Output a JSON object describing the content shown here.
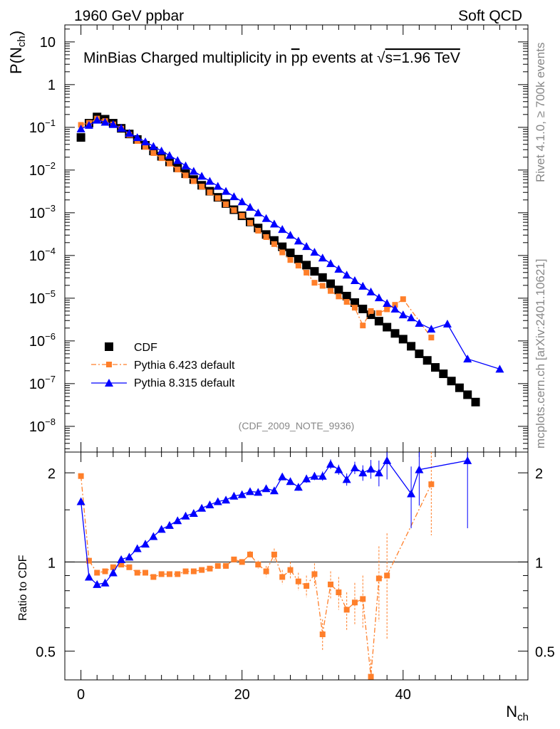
{
  "header": {
    "left": "1960 GeV ppbar",
    "right": "Soft QCD"
  },
  "side_labels": {
    "rivet": "Rivet 4.1.0, ≥ 700k events",
    "mcplots": "mcplots.cern.ch [arXiv:2401.10621]"
  },
  "chart_data": [
    {
      "type": "scatter",
      "title": "MinBias Charged multiplicity in p̅p events at √s=1.96 TeV",
      "title_parts": {
        "pre": "MinBias Charged multiplicity in ",
        "pbar": "p",
        "p": "p",
        "mid": " events at ",
        "sqrt": "√",
        "s_rest": "s=1.96 TeV"
      },
      "analysis_tag": "(CDF_2009_NOTE_9936)",
      "ylabel": {
        "main": "P(N",
        "sub": "ch",
        "close": ")"
      },
      "yscale": "log",
      "ylim": [
        2.5e-09,
        25
      ],
      "xlim": [
        -2,
        55.5
      ],
      "y_ticks": [
        {
          "v": 10,
          "b": "10",
          "e": ""
        },
        {
          "v": 1,
          "b": "1",
          "e": ""
        },
        {
          "v": 0.1,
          "b": "10",
          "e": "−1"
        },
        {
          "v": 0.01,
          "b": "10",
          "e": "−2"
        },
        {
          "v": 0.001,
          "b": "10",
          "e": "−3"
        },
        {
          "v": 0.0001,
          "b": "10",
          "e": "−4"
        },
        {
          "v": 1e-05,
          "b": "10",
          "e": "−5"
        },
        {
          "v": 1e-06,
          "b": "10",
          "e": "−6"
        },
        {
          "v": 1e-07,
          "b": "10",
          "e": "−7"
        },
        {
          "v": 1e-08,
          "b": "10",
          "e": "−8"
        }
      ],
      "legend": [
        {
          "name": "CDF"
        },
        {
          "name": "Pythia 6.423 default"
        },
        {
          "name": "Pythia 8.315 default"
        }
      ],
      "series": [
        {
          "name": "CDF",
          "color": "#000000",
          "marker": "square",
          "points": [
            [
              0,
              0.058
            ],
            [
              1,
              0.125
            ],
            [
              2,
              0.175
            ],
            [
              3,
              0.155
            ],
            [
              4,
              0.125
            ],
            [
              5,
              0.095
            ],
            [
              6,
              0.07
            ],
            [
              7,
              0.052
            ],
            [
              8,
              0.038
            ],
            [
              9,
              0.028
            ],
            [
              10,
              0.021
            ],
            [
              11,
              0.0155
            ],
            [
              12,
              0.0113
            ],
            [
              13,
              0.0082
            ],
            [
              14,
              0.006
            ],
            [
              15,
              0.0044
            ],
            [
              16,
              0.0032
            ],
            [
              17,
              0.0023
            ],
            [
              18,
              0.00165
            ],
            [
              19,
              0.00118
            ],
            [
              20,
              0.00085
            ],
            [
              21,
              0.00061
            ],
            [
              22,
              0.00044
            ],
            [
              23,
              0.00031
            ],
            [
              24,
              0.000225
            ],
            [
              25,
              0.00016
            ],
            [
              26,
              0.000115
            ],
            [
              27,
              8.2e-05
            ],
            [
              28,
              5.95e-05
            ],
            [
              29,
              4.25e-05
            ],
            [
              30,
              3.05e-05
            ],
            [
              31,
              2.18e-05
            ],
            [
              32,
              1.56e-05
            ],
            [
              33,
              1.12e-05
            ],
            [
              34,
              7.9e-06
            ],
            [
              35,
              5.6e-06
            ],
            [
              36,
              4.1e-06
            ],
            [
              37,
              2.9e-06
            ],
            [
              38,
              2.1e-06
            ],
            [
              39,
              1.5e-06
            ],
            [
              40,
              1.1e-06
            ],
            [
              41,
              7.5e-07
            ],
            [
              42,
              5e-07
            ],
            [
              43,
              3.5e-07
            ],
            [
              44,
              2.4e-07
            ],
            [
              45,
              1.7e-07
            ],
            [
              46,
              1.15e-07
            ],
            [
              47,
              8e-08
            ],
            [
              48,
              5.5e-08
            ],
            [
              49,
              3.7e-08
            ]
          ]
        },
        {
          "name": "Pythia 6.423 default",
          "color": "#ff7f2a",
          "marker": "square-small",
          "points": [
            [
              0,
              0.114
            ],
            [
              1,
              0.127
            ],
            [
              2,
              0.16
            ],
            [
              3,
              0.14
            ],
            [
              4,
              0.117
            ],
            [
              5,
              0.093
            ],
            [
              6,
              0.067
            ],
            [
              7,
              0.048
            ],
            [
              8,
              0.035
            ],
            [
              9,
              0.025
            ],
            [
              10,
              0.019
            ],
            [
              11,
              0.0142
            ],
            [
              12,
              0.0103
            ],
            [
              13,
              0.0075
            ],
            [
              14,
              0.0055
            ],
            [
              15,
              0.0041
            ],
            [
              16,
              0.003
            ],
            [
              17,
              0.0022
            ],
            [
              18,
              0.00158
            ],
            [
              19,
              0.00115
            ],
            [
              20,
              0.00085
            ],
            [
              21,
              0.00058
            ],
            [
              22,
              0.00038
            ],
            [
              23,
              0.00027
            ],
            [
              24,
              0.000185
            ],
            [
              25,
              0.000118
            ],
            [
              26,
              7.85e-05
            ],
            [
              27,
              5.8e-05
            ],
            [
              28,
              3.97e-05
            ],
            [
              29,
              2.3e-05
            ],
            [
              30,
              1.95e-05
            ],
            [
              31,
              1.48e-05
            ],
            [
              32,
              1.1e-05
            ],
            [
              33,
              8.2e-06
            ],
            [
              34,
              6e-06
            ],
            [
              35,
              2.3e-06
            ],
            [
              36,
              5e-06
            ],
            [
              37,
              4.5e-06
            ],
            [
              38,
              5.5e-06
            ],
            [
              39,
              7e-06
            ],
            [
              40,
              9.5e-06
            ],
            [
              43.5,
              1.2e-06
            ]
          ]
        },
        {
          "name": "Pythia 8.315 default",
          "color": "#0000ff",
          "marker": "triangle",
          "points": [
            [
              0,
              0.092
            ],
            [
              1,
              0.112
            ],
            [
              2,
              0.148
            ],
            [
              3,
              0.133
            ],
            [
              4,
              0.117
            ],
            [
              5,
              0.096
            ],
            [
              6,
              0.073
            ],
            [
              7,
              0.058
            ],
            [
              8,
              0.046
            ],
            [
              9,
              0.036
            ],
            [
              10,
              0.028
            ],
            [
              11,
              0.022
            ],
            [
              12,
              0.0168
            ],
            [
              13,
              0.0126
            ],
            [
              14,
              0.0094
            ],
            [
              15,
              0.0072
            ],
            [
              16,
              0.0055
            ],
            [
              17,
              0.0042
            ],
            [
              18,
              0.0032
            ],
            [
              19,
              0.0024
            ],
            [
              20,
              0.00182
            ],
            [
              21,
              0.00135
            ],
            [
              22,
              0.001
            ],
            [
              23,
              0.00074
            ],
            [
              24,
              0.00055
            ],
            [
              25,
              0.00041
            ],
            [
              26,
              0.0003
            ],
            [
              27,
              0.00022
            ],
            [
              28,
              0.000163
            ],
            [
              29,
              0.00012
            ],
            [
              30,
              8.8e-05
            ],
            [
              31,
              6.5e-05
            ],
            [
              32,
              4.8e-05
            ],
            [
              33,
              3.5e-05
            ],
            [
              34,
              2.6e-05
            ],
            [
              35,
              1.92e-05
            ],
            [
              36,
              1.41e-05
            ],
            [
              37,
              1.03e-05
            ],
            [
              38,
              7.6e-06
            ],
            [
              39,
              5.6e-06
            ],
            [
              40,
              4.1e-06
            ],
            [
              41,
              3.5e-06
            ],
            [
              42,
              2.6e-06
            ],
            [
              43.5,
              1.9e-06
            ],
            [
              45.5,
              2.5e-06
            ],
            [
              48,
              3.8e-07
            ],
            [
              52,
              2.2e-07
            ]
          ]
        }
      ]
    },
    {
      "type": "scatter",
      "title": "",
      "xlabel": {
        "main": "N",
        "sub": "ch"
      },
      "ylabel": "Ratio to CDF",
      "yscale": "log",
      "ylim": [
        0.4,
        2.35
      ],
      "xlim": [
        -2,
        55.5
      ],
      "x_ticks": [
        0,
        20,
        40
      ],
      "y_ticks": [
        {
          "v": 2,
          "label": "2"
        },
        {
          "v": 1,
          "label": "1"
        },
        {
          "v": 0.5,
          "label": "0.5"
        }
      ],
      "reference_line": 1,
      "series": [
        {
          "name": "Pythia 6.423 default",
          "color": "#ff7f2a",
          "marker": "square-small",
          "points": [
            [
              0,
              1.95,
              0
            ],
            [
              1,
              1.01,
              0
            ],
            [
              2,
              0.92,
              0
            ],
            [
              3,
              0.93,
              0
            ],
            [
              4,
              0.96,
              0.01
            ],
            [
              5,
              0.98,
              0.01
            ],
            [
              6,
              0.96,
              0.01
            ],
            [
              7,
              0.92,
              0.01
            ],
            [
              8,
              0.92,
              0.01
            ],
            [
              9,
              0.89,
              0.01
            ],
            [
              10,
              0.91,
              0.01
            ],
            [
              11,
              0.91,
              0.01
            ],
            [
              12,
              0.91,
              0.01
            ],
            [
              13,
              0.93,
              0.01
            ],
            [
              14,
              0.93,
              0.015
            ],
            [
              15,
              0.94,
              0.015
            ],
            [
              16,
              0.95,
              0.015
            ],
            [
              17,
              0.97,
              0.02
            ],
            [
              18,
              0.97,
              0.02
            ],
            [
              19,
              1.02,
              0.02
            ],
            [
              20,
              1.0,
              0.02
            ],
            [
              21,
              1.06,
              0.03
            ],
            [
              22,
              0.98,
              0.03
            ],
            [
              23,
              0.93,
              0.04
            ],
            [
              24,
              1.06,
              0.05
            ],
            [
              25,
              0.89,
              0.05
            ],
            [
              26,
              0.94,
              0.06
            ],
            [
              27,
              0.86,
              0.06
            ],
            [
              28,
              0.83,
              0.07
            ],
            [
              29,
              0.91,
              0.08
            ],
            [
              30,
              0.57,
              0.07
            ],
            [
              31,
              0.84,
              0.09
            ],
            [
              32,
              0.79,
              0.1
            ],
            [
              33,
              0.69,
              0.1
            ],
            [
              34,
              0.73,
              0.12
            ],
            [
              35,
              0.75,
              0.15
            ],
            [
              36,
              0.41,
              0.06
            ],
            [
              37,
              0.88,
              0.25
            ],
            [
              38,
              0.9,
              0.35
            ],
            [
              43.5,
              1.83,
              0.6
            ]
          ]
        },
        {
          "name": "Pythia 8.315 default",
          "color": "#0000ff",
          "marker": "triangle",
          "points": [
            [
              0,
              1.6,
              0
            ],
            [
              1,
              0.89,
              0
            ],
            [
              2,
              0.84,
              0
            ],
            [
              3,
              0.85,
              0
            ],
            [
              4,
              0.92,
              0.01
            ],
            [
              5,
              1.02,
              0.01
            ],
            [
              6,
              1.04,
              0.01
            ],
            [
              7,
              1.11,
              0.01
            ],
            [
              8,
              1.15,
              0.01
            ],
            [
              9,
              1.22,
              0.01
            ],
            [
              10,
              1.29,
              0.01
            ],
            [
              11,
              1.33,
              0.02
            ],
            [
              12,
              1.38,
              0.02
            ],
            [
              13,
              1.43,
              0.02
            ],
            [
              14,
              1.46,
              0.02
            ],
            [
              15,
              1.52,
              0.02
            ],
            [
              16,
              1.56,
              0.02
            ],
            [
              17,
              1.6,
              0.02
            ],
            [
              18,
              1.62,
              0.03
            ],
            [
              19,
              1.67,
              0.03
            ],
            [
              20,
              1.69,
              0.03
            ],
            [
              21,
              1.73,
              0.03
            ],
            [
              22,
              1.72,
              0.03
            ],
            [
              23,
              1.77,
              0.04
            ],
            [
              24,
              1.74,
              0.04
            ],
            [
              25,
              1.94,
              0.05
            ],
            [
              26,
              1.87,
              0.05
            ],
            [
              27,
              1.79,
              0.05
            ],
            [
              28,
              1.91,
              0.06
            ],
            [
              29,
              1.95,
              0.06
            ],
            [
              30,
              1.95,
              0.07
            ],
            [
              31,
              2.14,
              0.08
            ],
            [
              32,
              2.05,
              0.08
            ],
            [
              33,
              1.9,
              0.09
            ],
            [
              34,
              2.08,
              0.1
            ],
            [
              35,
              2.0,
              0.12
            ],
            [
              36,
              2.06,
              0.15
            ],
            [
              37,
              2.0,
              0.2
            ],
            [
              38,
              2.2,
              0.3
            ],
            [
              41,
              1.7,
              0.4
            ],
            [
              42,
              2.05,
              0.5
            ],
            [
              48,
              2.2,
              0.9
            ]
          ]
        }
      ]
    }
  ]
}
